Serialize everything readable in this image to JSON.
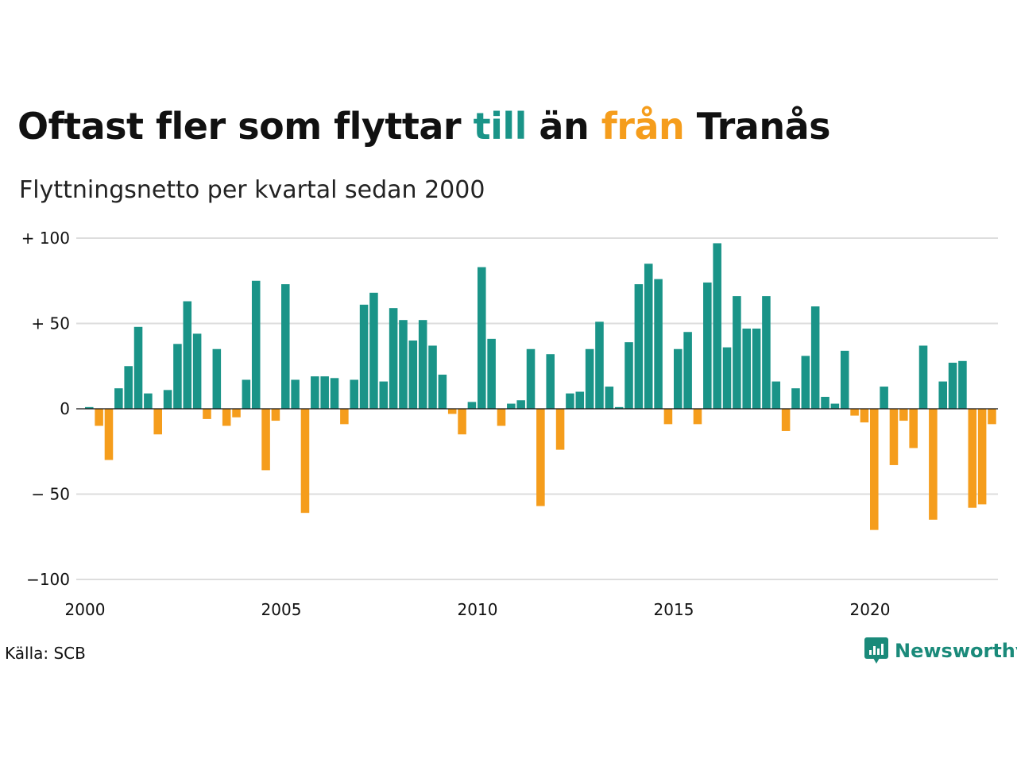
{
  "title": {
    "part1": "Oftast fler som flyttar ",
    "word_in": "till",
    "part2": " än ",
    "word_out": "från",
    "part3": " Tranås"
  },
  "subtitle": "Flyttningsnetto per kvartal sedan 2000",
  "source": "Källa: SCB",
  "brand": {
    "name": "Newsworthy"
  },
  "colors": {
    "positive": "#1a9488",
    "negative": "#f59d1c",
    "grid": "#dddddd",
    "axis": "#111111",
    "brand": "#1a8a7a"
  },
  "chart_data": {
    "type": "bar",
    "title": "Oftast fler som flyttar till än från Tranås",
    "subtitle": "Flyttningsnetto per kvartal sedan 2000",
    "x": [
      "2000 K1",
      "2000 K2",
      "2000 K3",
      "2000 K4",
      "2001 K1",
      "2001 K2",
      "2001 K3",
      "2001 K4",
      "2002 K1",
      "2002 K2",
      "2002 K3",
      "2002 K4",
      "2003 K1",
      "2003 K2",
      "2003 K3",
      "2003 K4",
      "2004 K1",
      "2004 K2",
      "2004 K3",
      "2004 K4",
      "2005 K1",
      "2005 K2",
      "2005 K3",
      "2005 K4",
      "2006 K1",
      "2006 K2",
      "2006 K3",
      "2006 K4",
      "2007 K1",
      "2007 K2",
      "2007 K3",
      "2007 K4",
      "2008 K1",
      "2008 K2",
      "2008 K3",
      "2008 K4",
      "2009 K1",
      "2009 K2",
      "2009 K3",
      "2009 K4",
      "2010 K1",
      "2010 K2",
      "2010 K3",
      "2010 K4",
      "2011 K1",
      "2011 K2",
      "2011 K3",
      "2011 K4",
      "2012 K1",
      "2012 K2",
      "2012 K3",
      "2012 K4",
      "2013 K1",
      "2013 K2",
      "2013 K3",
      "2013 K4",
      "2014 K1",
      "2014 K2",
      "2014 K3",
      "2014 K4",
      "2015 K1",
      "2015 K2",
      "2015 K3",
      "2015 K4",
      "2016 K1",
      "2016 K2",
      "2016 K3",
      "2016 K4",
      "2017 K1",
      "2017 K2",
      "2017 K3",
      "2017 K4",
      "2018 K1",
      "2018 K2",
      "2018 K3",
      "2018 K4",
      "2019 K1",
      "2019 K2",
      "2019 K3",
      "2019 K4",
      "2020 K1",
      "2020 K2",
      "2020 K3",
      "2020 K4",
      "2021 K1",
      "2021 K2",
      "2021 K3",
      "2021 K4",
      "2022 K1",
      "2022 K2",
      "2022 K3",
      "2022 K4",
      "2023 K1"
    ],
    "values": [
      1,
      -10,
      -30,
      12,
      25,
      48,
      9,
      -15,
      11,
      38,
      63,
      44,
      -6,
      35,
      -10,
      -5,
      17,
      75,
      -36,
      -7,
      73,
      17,
      -61,
      19,
      19,
      18,
      -9,
      17,
      61,
      68,
      16,
      59,
      52,
      40,
      52,
      37,
      20,
      -3,
      -15,
      4,
      83,
      41,
      -10,
      3,
      5,
      35,
      -57,
      32,
      -24,
      9,
      10,
      35,
      51,
      13,
      1,
      39,
      73,
      85,
      76,
      -9,
      35,
      45,
      -9,
      74,
      97,
      36,
      66,
      47,
      47,
      66,
      16,
      -13,
      12,
      31,
      60,
      7,
      3,
      34,
      -4,
      -8,
      -71,
      13,
      -33,
      -7,
      -23,
      37,
      -65,
      16,
      27,
      28,
      -58,
      -56,
      -9
    ],
    "ylim": [
      -100,
      100
    ],
    "y_ticks": [
      {
        "value": 100,
        "label": "+ 100"
      },
      {
        "value": 50,
        "label": "+  50"
      },
      {
        "value": 0,
        "label": "0"
      },
      {
        "value": -50,
        "label": "− 50"
      },
      {
        "value": -100,
        "label": "−100"
      }
    ],
    "x_ticks": [
      "2000",
      "2005",
      "2010",
      "2015",
      "2020"
    ],
    "x_start_year": 2000,
    "grid": true,
    "legend": "none"
  }
}
